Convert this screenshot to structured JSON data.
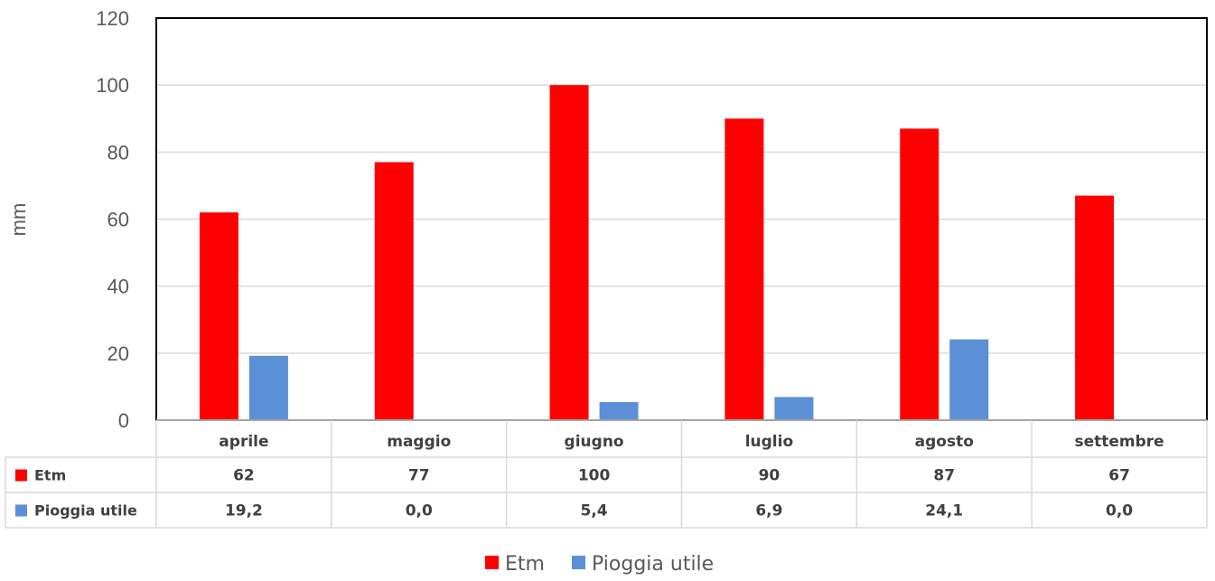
{
  "chart_data": {
    "type": "bar",
    "categories": [
      "aprile",
      "maggio",
      "giugno",
      "luglio",
      "agosto",
      "settembre"
    ],
    "series": [
      {
        "name": "Etm",
        "color": "#ff0000",
        "values": [
          62,
          77,
          100,
          90,
          87,
          67
        ],
        "labels": [
          "62",
          "77",
          "100",
          "90",
          "87",
          "67"
        ]
      },
      {
        "name": "Pioggia utile",
        "color": "#5b8fd6",
        "values": [
          19.2,
          0.0,
          5.4,
          6.9,
          24.1,
          0.0
        ],
        "labels": [
          "19,2",
          "0,0",
          "5,4",
          "6,9",
          "24,1",
          "0,0"
        ]
      }
    ],
    "ylabel": "mm",
    "ylim": [
      0,
      120
    ],
    "yticks": [
      "0",
      "20",
      "40",
      "60",
      "80",
      "100",
      "120"
    ],
    "grid": true,
    "data_table": true,
    "legend": "bottom"
  }
}
